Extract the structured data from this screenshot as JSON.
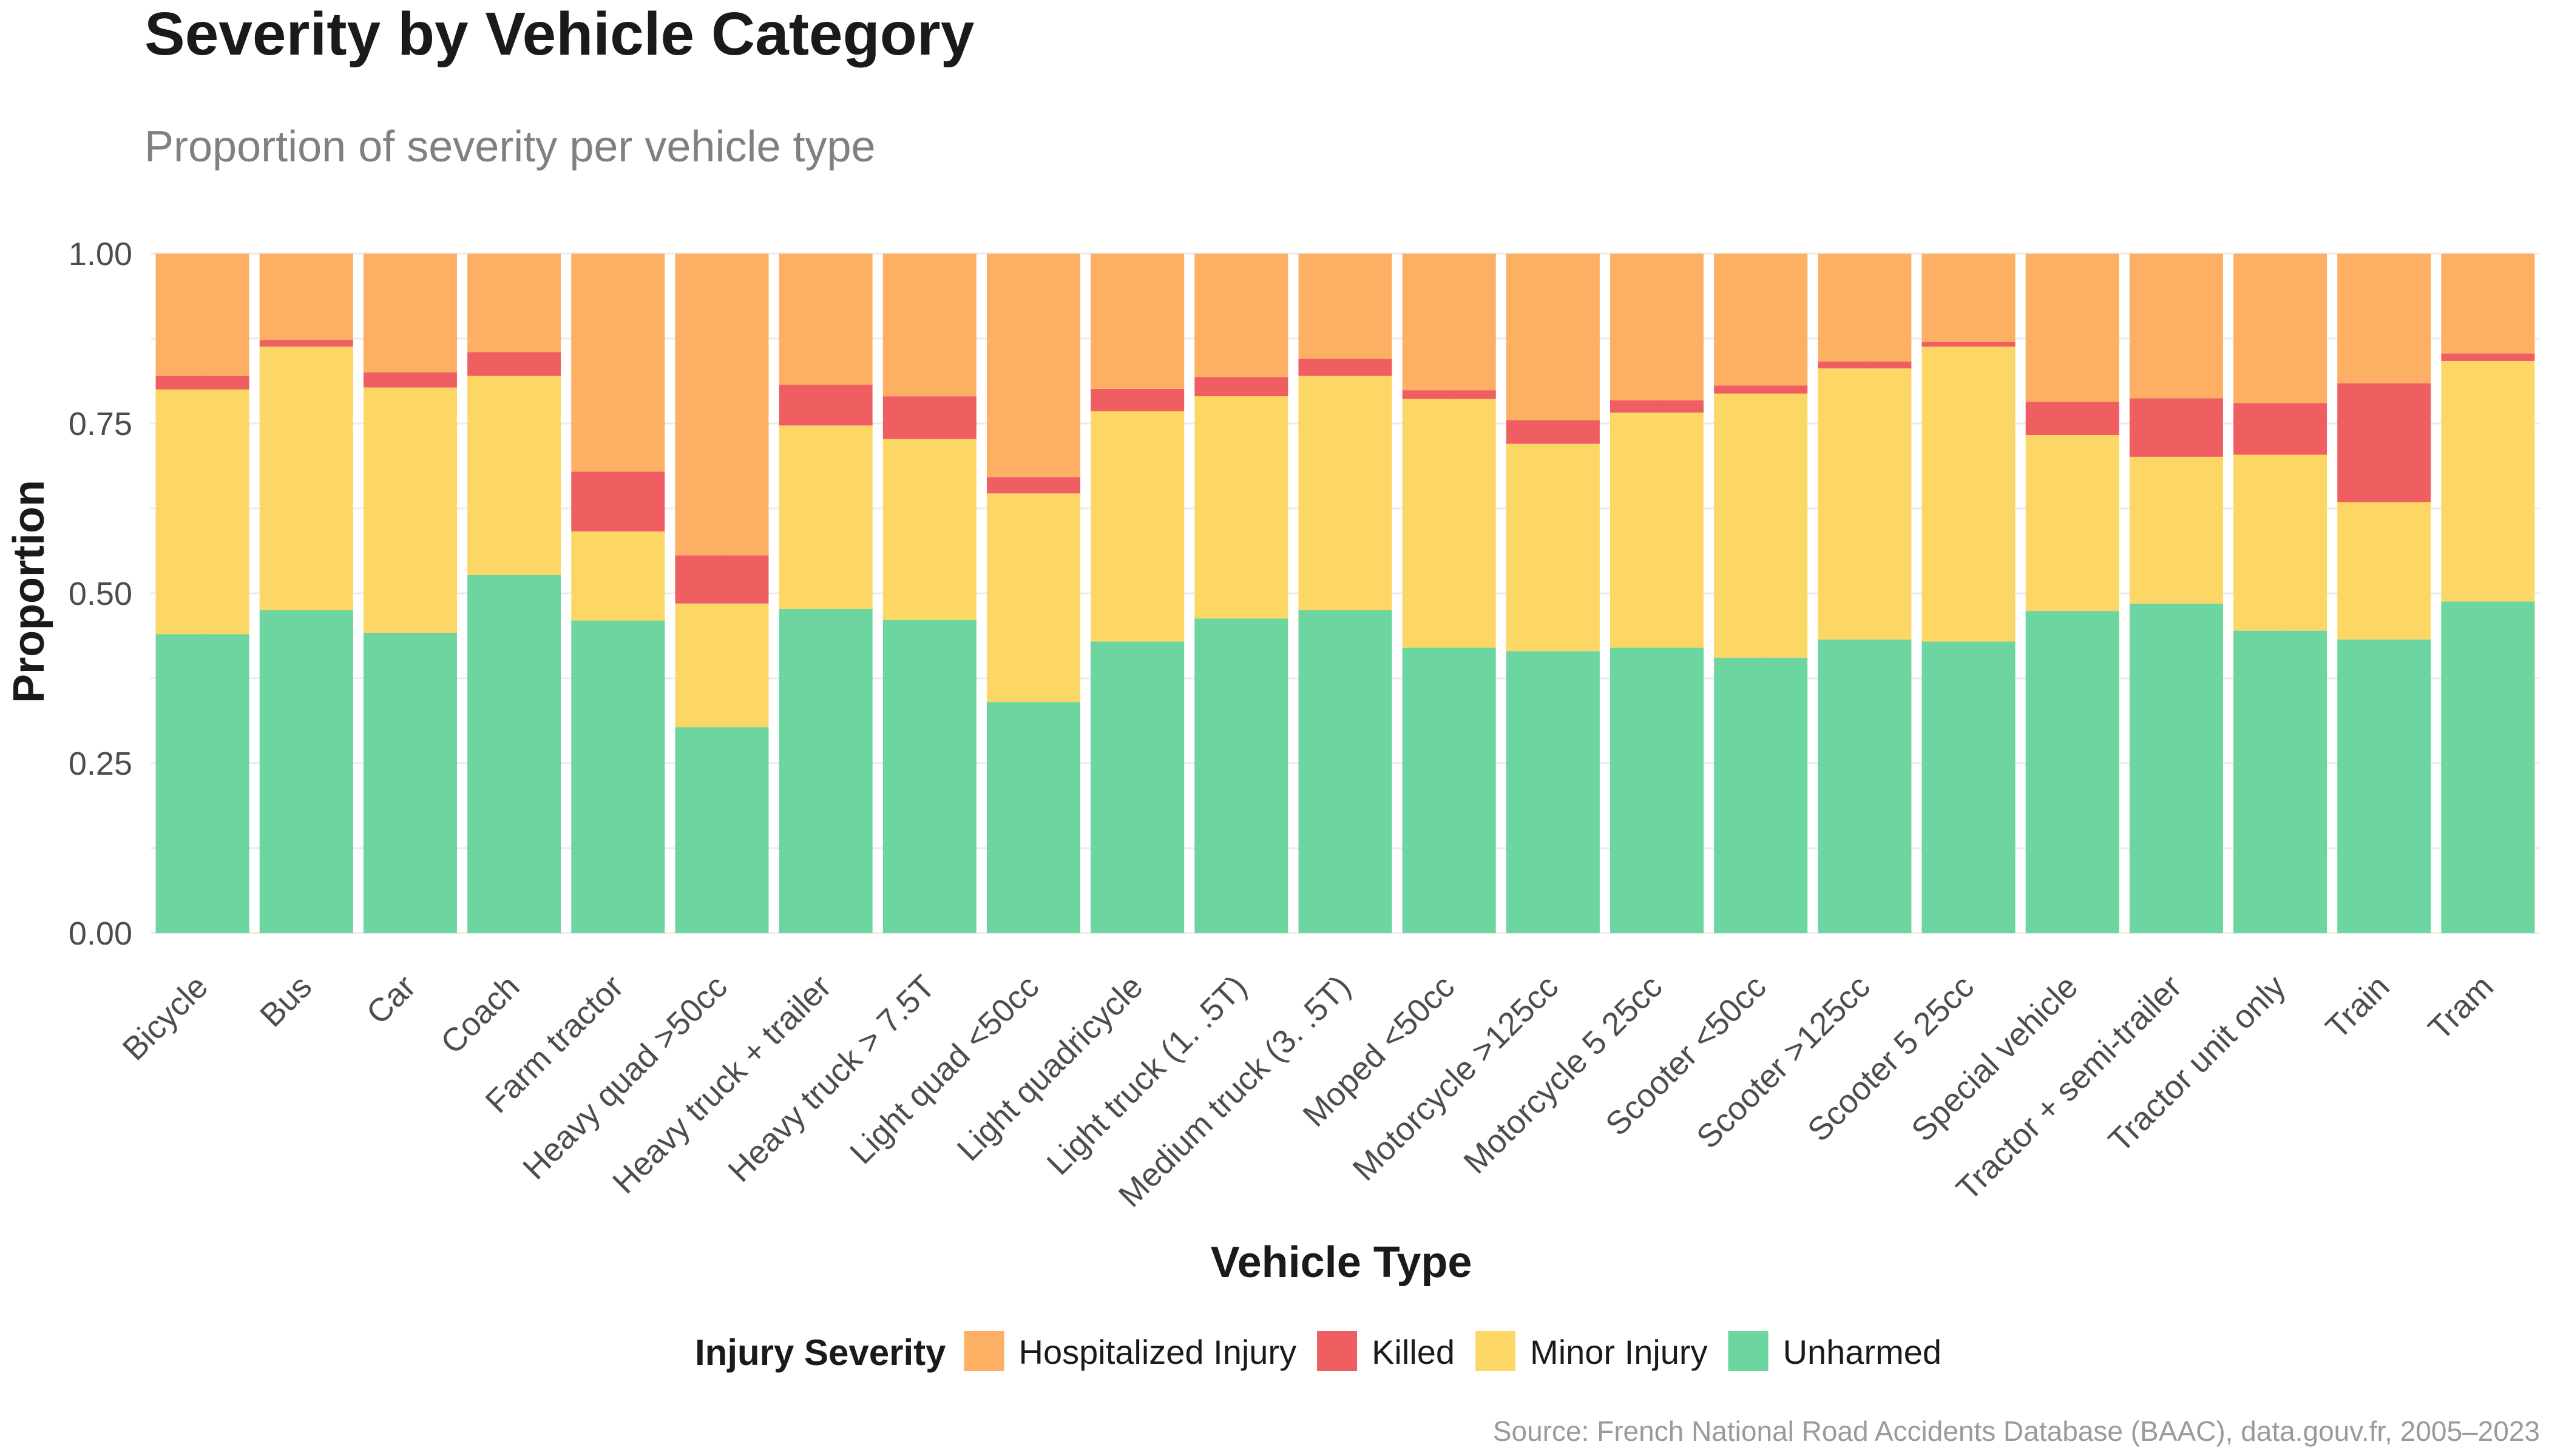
{
  "chart_data": {
    "type": "bar",
    "stacked": true,
    "title": "Severity by Vehicle Category",
    "subtitle": "Proportion of severity per vehicle type",
    "xlabel": "Vehicle Type",
    "ylabel": "Proportion",
    "ylim": [
      0,
      1
    ],
    "yticks": [
      "0.00",
      "0.25",
      "0.50",
      "0.75",
      "1.00"
    ],
    "grid": true,
    "legend_title": "Injury Severity",
    "legend_position": "bottom",
    "caption": "Source: French National Road Accidents Database (BAAC), data.gouv.fr, 2005–2023",
    "categories": [
      "Bicycle",
      "Bus",
      "Car",
      "Coach",
      "Farm tractor",
      "Heavy quad >50cc",
      "Heavy truck + trailer",
      "Heavy truck > 7.5T",
      "Light quad <50cc",
      "Light quadricycle",
      "Light truck (1. .5T)",
      "Medium truck (3. .5T)",
      "Moped <50cc",
      "Motorcycle >125cc",
      "Motorcycle 5 25cc",
      "Scooter <50cc",
      "Scooter >125cc",
      "Scooter 5 25cc",
      "Special vehicle",
      "Tractor + semi-trailer",
      "Tractor unit only",
      "Train",
      "Tram"
    ],
    "series": [
      {
        "name": "Unharmed",
        "color": "#6DD5A0",
        "values": [
          0.44,
          0.475,
          0.442,
          0.527,
          0.46,
          0.303,
          0.477,
          0.461,
          0.34,
          0.429,
          0.463,
          0.475,
          0.42,
          0.415,
          0.42,
          0.405,
          0.432,
          0.429,
          0.474,
          0.485,
          0.445,
          0.432,
          0.488
        ]
      },
      {
        "name": "Minor Injury",
        "color": "#FDD766",
        "values": [
          0.36,
          0.388,
          0.361,
          0.293,
          0.131,
          0.182,
          0.27,
          0.266,
          0.307,
          0.339,
          0.327,
          0.345,
          0.366,
          0.305,
          0.346,
          0.389,
          0.399,
          0.434,
          0.259,
          0.216,
          0.259,
          0.202,
          0.354
        ]
      },
      {
        "name": "Killed",
        "color": "#EF5F62",
        "values": [
          0.02,
          0.01,
          0.022,
          0.035,
          0.088,
          0.071,
          0.06,
          0.063,
          0.024,
          0.033,
          0.028,
          0.025,
          0.013,
          0.035,
          0.018,
          0.012,
          0.01,
          0.007,
          0.049,
          0.086,
          0.076,
          0.175,
          0.011
        ]
      },
      {
        "name": "Hospitalized Injury",
        "color": "#FDB064",
        "values": [
          0.18,
          0.127,
          0.175,
          0.145,
          0.321,
          0.444,
          0.193,
          0.21,
          0.329,
          0.199,
          0.182,
          0.155,
          0.201,
          0.245,
          0.216,
          0.194,
          0.159,
          0.13,
          0.218,
          0.213,
          0.22,
          0.191,
          0.147
        ]
      }
    ],
    "legend_order": [
      "Hospitalized Injury",
      "Killed",
      "Minor Injury",
      "Unharmed"
    ]
  }
}
